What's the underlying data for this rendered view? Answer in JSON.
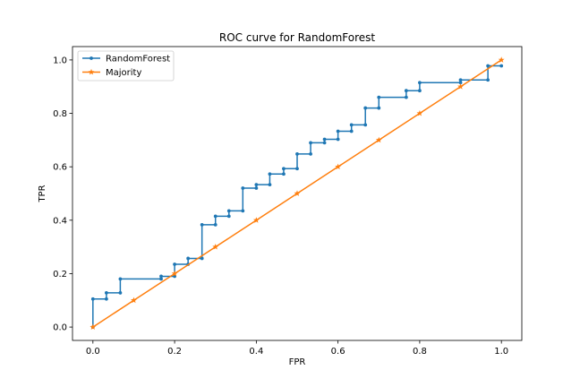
{
  "chart_data": {
    "type": "line",
    "title": "ROC curve for RandomForest",
    "xlabel": "FPR",
    "ylabel": "TPR",
    "xlim": [
      -0.05,
      1.05
    ],
    "ylim": [
      -0.05,
      1.05
    ],
    "xticks": [
      0.0,
      0.2,
      0.4,
      0.6,
      0.8,
      1.0
    ],
    "yticks": [
      0.0,
      0.2,
      0.4,
      0.6,
      0.8,
      1.0
    ],
    "xtick_labels": [
      "0.0",
      "0.2",
      "0.4",
      "0.6",
      "0.8",
      "1.0"
    ],
    "ytick_labels": [
      "0.0",
      "0.2",
      "0.4",
      "0.6",
      "0.8",
      "1.0"
    ],
    "grid": false,
    "legend_position": "top-left",
    "series": [
      {
        "name": "RandomForest",
        "color": "#1f77b4",
        "marker": "dot",
        "step": true,
        "x": [
          0.0,
          0.0,
          0.033,
          0.033,
          0.067,
          0.067,
          0.167,
          0.167,
          0.2,
          0.2,
          0.233,
          0.233,
          0.267,
          0.267,
          0.3,
          0.3,
          0.333,
          0.333,
          0.367,
          0.367,
          0.4,
          0.4,
          0.433,
          0.433,
          0.467,
          0.467,
          0.5,
          0.5,
          0.533,
          0.533,
          0.567,
          0.567,
          0.6,
          0.6,
          0.633,
          0.633,
          0.667,
          0.667,
          0.7,
          0.7,
          0.767,
          0.767,
          0.8,
          0.8,
          0.9,
          0.9,
          0.967,
          0.967,
          1.0
        ],
        "y": [
          0.0,
          0.105,
          0.105,
          0.128,
          0.128,
          0.18,
          0.18,
          0.19,
          0.19,
          0.235,
          0.235,
          0.257,
          0.257,
          0.383,
          0.383,
          0.415,
          0.415,
          0.435,
          0.435,
          0.52,
          0.52,
          0.533,
          0.533,
          0.573,
          0.573,
          0.593,
          0.593,
          0.648,
          0.648,
          0.69,
          0.69,
          0.703,
          0.703,
          0.733,
          0.733,
          0.757,
          0.757,
          0.82,
          0.82,
          0.86,
          0.86,
          0.885,
          0.885,
          0.915,
          0.915,
          0.925,
          0.925,
          0.978,
          0.978
        ]
      },
      {
        "name": "Majority",
        "color": "#ff7f0e",
        "marker": "star",
        "step": false,
        "x": [
          0.0,
          0.1,
          0.2,
          0.3,
          0.4,
          0.5,
          0.6,
          0.7,
          0.8,
          0.9,
          1.0
        ],
        "y": [
          0.0,
          0.1,
          0.2,
          0.3,
          0.4,
          0.5,
          0.6,
          0.7,
          0.8,
          0.9,
          1.0
        ]
      }
    ]
  }
}
